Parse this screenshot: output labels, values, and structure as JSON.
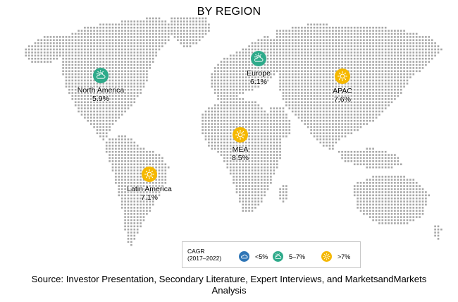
{
  "title": "BY REGION",
  "colors": {
    "dot": "#a6a6a6",
    "low": "#2e75b6",
    "mid": "#2eaa8a",
    "high": "#f5b800"
  },
  "regions": [
    {
      "id": "north-america",
      "name": "North America",
      "value": "5.9%",
      "category": "mid",
      "icon": "cloud-sun-icon"
    },
    {
      "id": "europe",
      "name": "Europe",
      "value": "6.1%",
      "category": "mid",
      "icon": "cloud-sun-icon"
    },
    {
      "id": "apac",
      "name": "APAC",
      "value": "7.6%",
      "category": "high",
      "icon": "sun-icon"
    },
    {
      "id": "mea",
      "name": "MEA",
      "value": "8.5%",
      "category": "high",
      "icon": "sun-icon"
    },
    {
      "id": "latin-america",
      "name": "Latin America",
      "value": "7.1%",
      "category": "high",
      "icon": "sun-icon"
    }
  ],
  "legend": {
    "title_line1": "CAGR",
    "title_line2": "(2017–2022)",
    "items": [
      {
        "label": "<5%",
        "icon": "cloud-icon",
        "category": "low"
      },
      {
        "label": "5–7%",
        "icon": "cloud-sun-icon",
        "category": "mid"
      },
      {
        "label": ">7%",
        "icon": "sun-icon",
        "category": "high"
      }
    ]
  },
  "source": "Source: Investor Presentation, Secondary Literature, Expert Interviews, and MarketsandMarkets Analysis"
}
